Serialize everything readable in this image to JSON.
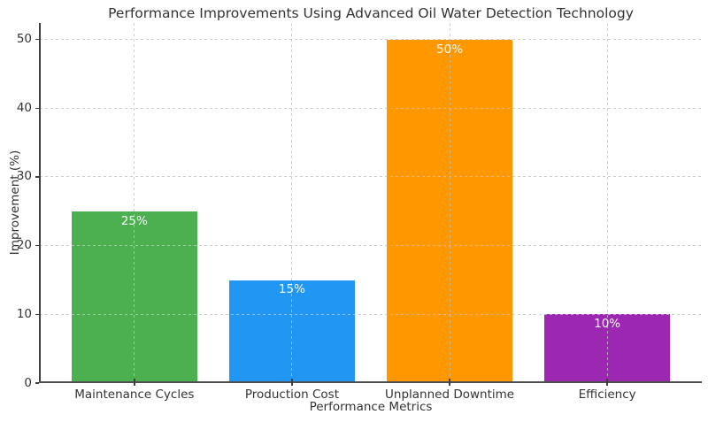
{
  "chart_data": {
    "type": "bar",
    "title": "Performance Improvements Using Advanced Oil Water Detection Technology",
    "xlabel": "Performance Metrics",
    "ylabel": "Improvement (%)",
    "categories": [
      "Maintenance Cycles",
      "Production Cost",
      "Unplanned Downtime",
      "Efficiency"
    ],
    "values": [
      25,
      15,
      50,
      10
    ],
    "bar_labels": [
      "25%",
      "15%",
      "50%",
      "10%"
    ],
    "bar_colors": [
      "#4caf50",
      "#2196f3",
      "#ff9800",
      "#9c27b0"
    ],
    "yticks": [
      0,
      10,
      20,
      30,
      40,
      50
    ],
    "ytick_labels": [
      "0",
      "10",
      "20",
      "30",
      "40",
      "50"
    ],
    "ylim": [
      0,
      52.4
    ],
    "grid": "dashed-both-axes",
    "legend_position": "none",
    "value_label_color": "#ffffff",
    "background_color": "#ffffff",
    "text_color": "#333333",
    "axis_color": "#3d3d3d",
    "grid_color": "#c3c3c3"
  }
}
